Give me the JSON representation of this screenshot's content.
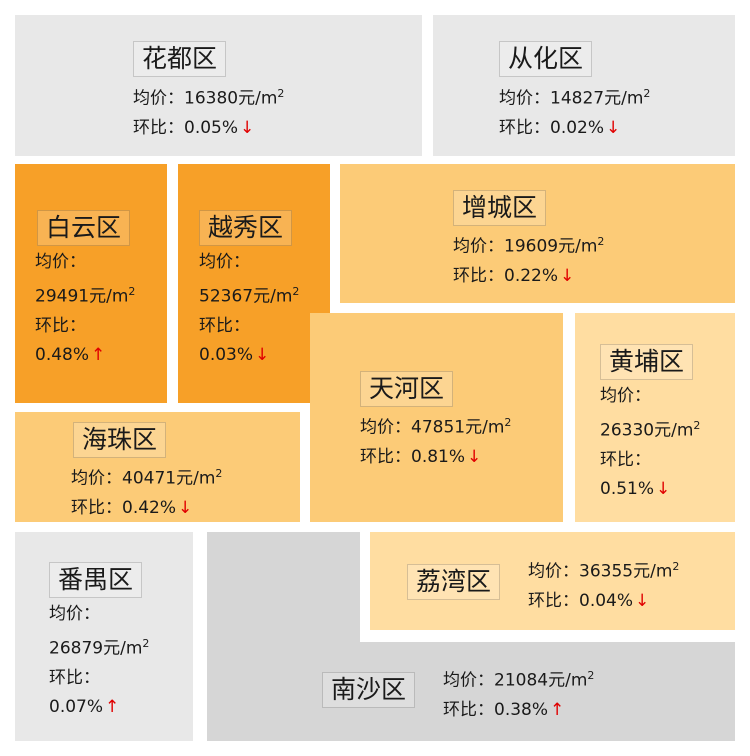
{
  "labels": {
    "price": "均价：",
    "mom": "环比：",
    "unit": "元/m",
    "unit_sup": "2"
  },
  "arrows": {
    "up": "↑",
    "down": "↓"
  },
  "colors": {
    "light_gray": "#e8e8e8",
    "mid_gray": "#d6d6d6",
    "dark_orange": "#f7a028",
    "orange": "#fccb77",
    "light_orange": "#ffdda1",
    "arrow_red": "#e00000"
  },
  "districts": {
    "huadu": {
      "name": "花都区",
      "price": "16380",
      "mom": "0.05%",
      "dir": "down"
    },
    "conghua": {
      "name": "从化区",
      "price": "14827",
      "mom": "0.02%",
      "dir": "down"
    },
    "baiyun": {
      "name": "白云区",
      "price": "29491",
      "mom": "0.48%",
      "dir": "up"
    },
    "yuexiu": {
      "name": "越秀区",
      "price": "52367",
      "mom": "0.03%",
      "dir": "down"
    },
    "zengcheng": {
      "name": "增城区",
      "price": "19609",
      "mom": "0.22%",
      "dir": "down"
    },
    "tianhe": {
      "name": "天河区",
      "price": "47851",
      "mom": "0.81%",
      "dir": "down"
    },
    "huangpu": {
      "name": "黄埔区",
      "price": "26330",
      "mom": "0.51%",
      "dir": "down"
    },
    "haizhu": {
      "name": "海珠区",
      "price": "40471",
      "mom": "0.42%",
      "dir": "down"
    },
    "panyu": {
      "name": "番禺区",
      "price": "26879",
      "mom": "0.07%",
      "dir": "up"
    },
    "liwan": {
      "name": "荔湾区",
      "price": "36355",
      "mom": "0.04%",
      "dir": "down"
    },
    "nansha": {
      "name": "南沙区",
      "price": "21084",
      "mom": "0.38%",
      "dir": "up"
    }
  }
}
